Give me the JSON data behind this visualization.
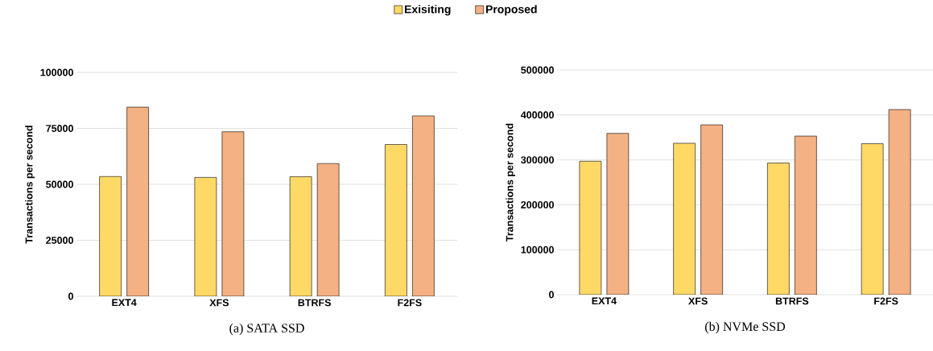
{
  "chart_data": [
    {
      "type": "bar",
      "title": "(a)  SATA SSD",
      "ylabel": "Transactions per second",
      "categories": [
        "EXT4",
        "XFS",
        "BTRFS",
        "F2FS"
      ],
      "series": [
        {
          "name": "Exisiting",
          "color": "#ffd966",
          "values": [
            53500,
            53100,
            53400,
            67800
          ]
        },
        {
          "name": "Proposed",
          "color": "#f4b183",
          "values": [
            84500,
            73500,
            59300,
            80600
          ]
        }
      ],
      "ylim": [
        0,
        100000
      ],
      "yticks": [
        0,
        25000,
        50000,
        75000,
        100000
      ],
      "grid": "y",
      "legend": "top"
    },
    {
      "type": "bar",
      "title": "(b)  NVMe SSD",
      "ylabel": "Transactions per second",
      "categories": [
        "EXT4",
        "XFS",
        "BTRFS",
        "F2FS"
      ],
      "series": [
        {
          "color": "#ffd966",
          "values": [
            297000,
            337000,
            293000,
            336000
          ]
        },
        {
          "color": "#f4b183",
          "values": [
            359000,
            378000,
            353000,
            412000
          ]
        }
      ],
      "ylim": [
        0,
        500000
      ],
      "yticks": [
        0,
        100000,
        200000,
        300000,
        400000,
        500000
      ],
      "grid": "y"
    }
  ]
}
